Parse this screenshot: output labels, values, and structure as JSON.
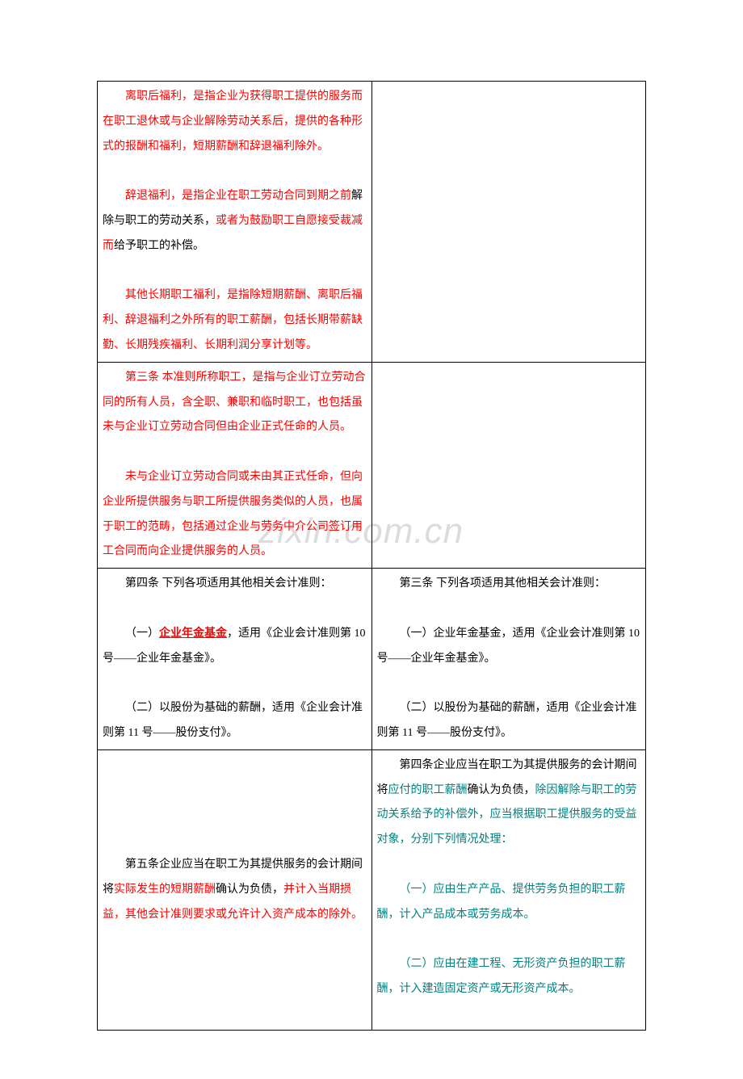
{
  "watermark": "zixin.com.cn",
  "rows": [
    {
      "left": [
        {
          "segments": [
            {
              "text": "离职后福利，是指企业为获得职工提供的服务而在职工退休或与企业解除劳动关系后，提供的各种形式的报酬和福利，短期薪酬和辞退福利除外。",
              "cls": "red"
            }
          ]
        },
        {
          "blank": true
        },
        {
          "segments": [
            {
              "text": "辞退福利，是指企业在职工劳动合同到期之前",
              "cls": "red"
            },
            {
              "text": "解除与职工的劳动关系，",
              "cls": "black"
            },
            {
              "text": "或者为鼓励职工自愿接受裁减而",
              "cls": "red"
            },
            {
              "text": "给予职工的补偿。",
              "cls": "black"
            }
          ]
        },
        {
          "blank": true
        },
        {
          "segments": [
            {
              "text": "其他长期职工福利，是指除短期薪酬、离职后福利、辞退福利之外所有的职工薪酬，包括长期带薪缺勤、长期残疾福利、长期利润分享计划等。",
              "cls": "red"
            }
          ]
        }
      ],
      "right": []
    },
    {
      "left": [
        {
          "segments": [
            {
              "text": "第三条  本准则所称职工，是指与企业订立劳动合同的所有人员，含全职、兼职和临时职工，也包括虽未与企业订立劳动合同但由企业正式任命的人员。",
              "cls": "red"
            }
          ]
        },
        {
          "blank": true
        },
        {
          "segments": [
            {
              "text": "未与企业订立劳动合同或未由其正式任命，但向企业所提供服务与职工所提供服务类似的人员，也属于职工的范畴，包括通过企业与劳务中介公司签订用工合同而向企业提供服务的人员。",
              "cls": "red"
            }
          ]
        }
      ],
      "right": []
    },
    {
      "left": [
        {
          "segments": [
            {
              "text": "第四条 下列各项适用其他相关会计准则：",
              "cls": "black"
            }
          ]
        },
        {
          "blank": true
        },
        {
          "segments": [
            {
              "text": "（一）",
              "cls": "black"
            },
            {
              "text": "企业年金基金",
              "cls": "red bold underline"
            },
            {
              "text": "，适用《企业会计准则第 10号——企业年金基金》。",
              "cls": "black"
            }
          ]
        },
        {
          "blank": true
        },
        {
          "segments": [
            {
              "text": "（二）以股份为基础的薪酬，适用《企业会计准则第 11 号——股份支付》。",
              "cls": "black"
            }
          ]
        }
      ],
      "right": [
        {
          "segments": [
            {
              "text": "第三条 下列各项适用其他相关会计准则：",
              "cls": "black"
            }
          ]
        },
        {
          "blank": true
        },
        {
          "segments": [
            {
              "text": "（一）企业年金基金，适用《企业会计准则第 10号——企业年金基金》。",
              "cls": "black"
            }
          ]
        },
        {
          "blank": true
        },
        {
          "segments": [
            {
              "text": "（二）以股份为基础的薪酬，适用《企业会计准则第 11 号——股份支付》。",
              "cls": "black"
            }
          ]
        }
      ]
    },
    {
      "left": [
        {
          "blank": true
        },
        {
          "blank": true
        },
        {
          "blank": true
        },
        {
          "blank": true
        },
        {
          "segments": [
            {
              "text": "第五条企业应当在职工为其提供服务的会计期间将",
              "cls": "black"
            },
            {
              "text": "实际发生的短期薪酬",
              "cls": "red"
            },
            {
              "text": "确认为负债，",
              "cls": "black"
            },
            {
              "text": "并计入当期损益，其他会计准则要求或允许计入资产成本的除外。",
              "cls": "red"
            }
          ]
        }
      ],
      "right": [
        {
          "segments": [
            {
              "text": "第四条企业应当在职工为其提供服务的会计期间将",
              "cls": "black"
            },
            {
              "text": "应付的职工薪酬",
              "cls": "teal"
            },
            {
              "text": "确认为负债，",
              "cls": "black"
            },
            {
              "text": "除因解除与职工的劳动关系给予的补偿外，应当根据职工提供服务的受益对象，分别下列情况处理：",
              "cls": "teal"
            }
          ]
        },
        {
          "blank": true
        },
        {
          "segments": [
            {
              "text": "（一）应由生产产品、提供劳务负担的职工薪酬，计入产品成本或劳务成本。",
              "cls": "teal"
            }
          ]
        },
        {
          "blank": true
        },
        {
          "segments": [
            {
              "text": "（二）应由在建工程、无形资产负担的职工薪酬，计入建造固定资产或无形资产成本。",
              "cls": "teal"
            }
          ]
        },
        {
          "blank": true
        }
      ]
    }
  ]
}
